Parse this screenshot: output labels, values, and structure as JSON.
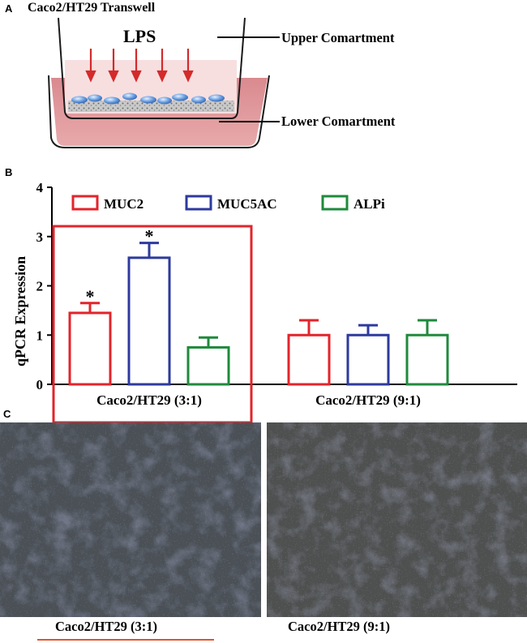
{
  "panel_a": {
    "letter": "A",
    "title": "Caco2/HT29  Transwell",
    "lps_label": "LPS",
    "upper_label": "Upper Comartment",
    "lower_label": "Lower Comartment"
  },
  "panel_b": {
    "letter": "B",
    "ylabel": "qPCR Expression",
    "yticks": [
      "0",
      "1",
      "2",
      "3",
      "4"
    ],
    "group_labels": [
      "Caco2/HT29 (3:1)",
      "Caco2/HT29 (9:1)"
    ],
    "legend": [
      "MUC2",
      "MUC5AC",
      "ALPi"
    ],
    "star": "*"
  },
  "chart_data": {
    "type": "bar",
    "categories": [
      "Caco2/HT29 (3:1)",
      "Caco2/HT29 (9:1)"
    ],
    "ylabel": "qPCR Expression",
    "ylim": [
      0,
      4
    ],
    "series": [
      {
        "name": "MUC2",
        "color": "#e3242b",
        "values": [
          1.45,
          1.0
        ],
        "errors": [
          0.2,
          0.3
        ],
        "significant": [
          true,
          false
        ]
      },
      {
        "name": "MUC5AC",
        "color": "#2d3a9e",
        "values": [
          2.57,
          1.0
        ],
        "errors": [
          0.3,
          0.2
        ],
        "significant": [
          true,
          false
        ]
      },
      {
        "name": "ALPi",
        "color": "#1f8a3c",
        "values": [
          0.75,
          1.0
        ],
        "errors": [
          0.2,
          0.3
        ],
        "significant": [
          false,
          false
        ]
      }
    ],
    "highlight_group": "Caco2/HT29 (3:1)",
    "highlight_color": "#e3242b"
  },
  "panel_c": {
    "letter": "C",
    "captions": [
      "Caco2/HT29 (3:1)",
      "Caco2/HT29 (9:1)"
    ],
    "underline_color": "#e3542b"
  }
}
